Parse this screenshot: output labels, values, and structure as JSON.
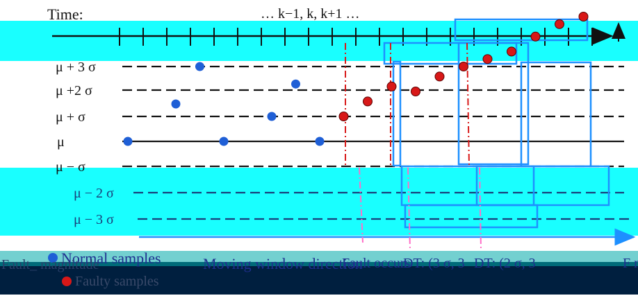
{
  "time_axis": {
    "label": "Time:",
    "index_labels": "… k−1, k, k+1 …"
  },
  "levels": [
    {
      "key": "p3",
      "label": "μ + 3 σ"
    },
    {
      "key": "p2",
      "label": "μ +2 σ"
    },
    {
      "key": "p1",
      "label": "μ + σ"
    },
    {
      "key": "mu",
      "label": "μ"
    },
    {
      "key": "m1",
      "label": "μ − σ"
    },
    {
      "key": "m2",
      "label": "μ − 2 σ"
    },
    {
      "key": "m3",
      "label": "μ − 3 σ"
    }
  ],
  "samples": {
    "normal": [
      {
        "t": 0,
        "z": 0.0
      },
      {
        "t": 2,
        "z": 1.5
      },
      {
        "t": 3,
        "z": 3.0
      },
      {
        "t": 4,
        "z": 0.0
      },
      {
        "t": 6,
        "z": 1.0
      },
      {
        "t": 7,
        "z": 2.3
      },
      {
        "t": 8,
        "z": 0.0
      }
    ],
    "faulty": [
      {
        "t": 9,
        "z": 1.0
      },
      {
        "t": 10,
        "z": 1.6
      },
      {
        "t": 11,
        "z": 2.2
      },
      {
        "t": 12,
        "z": 2.0
      },
      {
        "t": 13,
        "z": 2.6
      },
      {
        "t": 14,
        "z": 3.0
      },
      {
        "t": 15,
        "z": 3.3
      },
      {
        "t": 16,
        "z": 3.6
      },
      {
        "t": 17,
        "z": 4.2
      },
      {
        "t": 18,
        "z": 4.7
      },
      {
        "t": 19,
        "z": 5.0
      }
    ]
  },
  "legend": {
    "normal_label": "Normal samples",
    "faulty_label": "Faulty samples",
    "normal_color": "#1f5fd6",
    "faulty_color": "#d81818"
  },
  "bottom_labels": {
    "left_label": "Fault_ magnitude",
    "window_label": "Moving window direction",
    "fault_label": "Fault occurs",
    "dt1_label": "DT: (3 σ, 3",
    "dt2_label": "DT: (2 σ, 3",
    "right_label": "F m"
  },
  "colors": {
    "axis": "#111111",
    "window": "#1e90ff",
    "fault_marker": "#d81818",
    "dt_marker": "#ff6ec7",
    "band": "#001f3f",
    "band_overlay": "#00ffff"
  }
}
